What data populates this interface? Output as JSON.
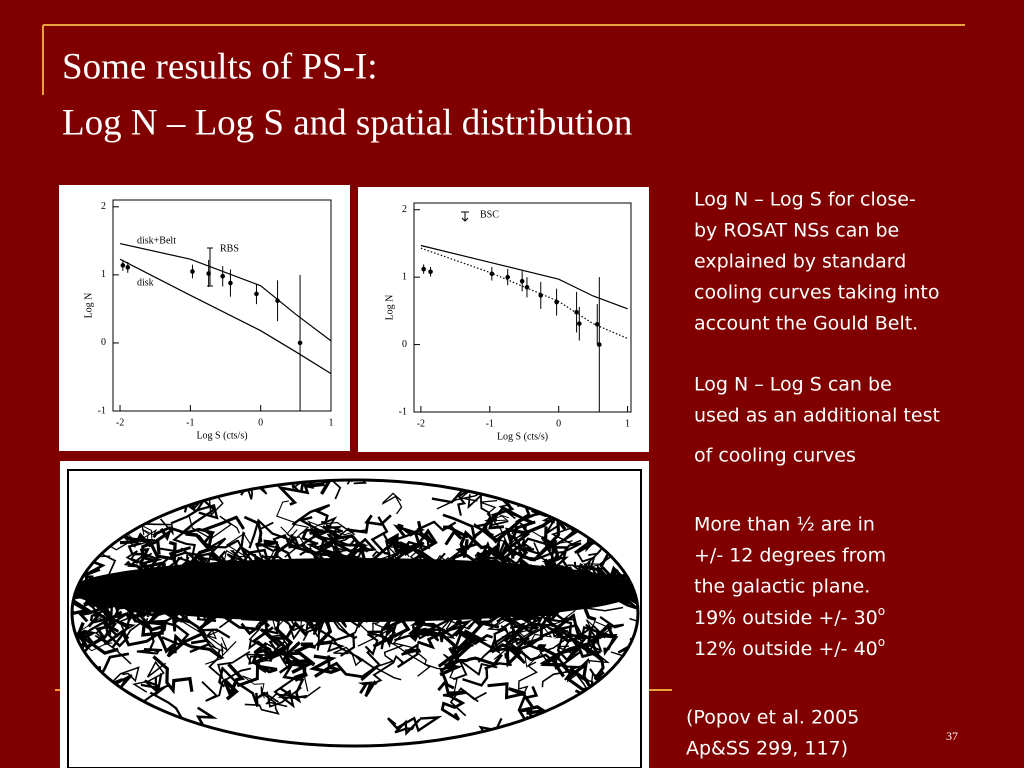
{
  "slide": {
    "title": [
      "Some results of  PS-I:",
      "Log N – Log S and spatial distribution"
    ],
    "paragraphs": [
      [
        "Log N – Log S for close-",
        "by ROSAT NSs can be",
        "explained by standard",
        "cooling curves taking into",
        "account the Gould Belt."
      ],
      [
        "Log N – Log S can be",
        "used as an additional test",
        "of cooling curves"
      ],
      [
        "More than ½  are in",
        "+/- 12 degrees from",
        "the galactic plane."
      ]
    ],
    "outside": [
      {
        "text": "19% outside +/- 30",
        "sup": "o"
      },
      {
        "text": "12% outside +/- 40",
        "sup": "o"
      }
    ],
    "citation": [
      "(Popov et al. 2005",
      " Ap&SS  299, 117)"
    ],
    "page_number": "37"
  },
  "chart_data": [
    {
      "type": "line",
      "xlabel": "Log S (cts/s)",
      "ylabel": "Log N",
      "xlim": [
        -2.1,
        1
      ],
      "ylim": [
        -1,
        2.1
      ],
      "xticks": [
        -2,
        -1,
        0,
        1
      ],
      "yticks": [
        -1,
        0,
        1,
        2
      ],
      "series": [
        {
          "name": "disk+Belt",
          "style": "solid",
          "x": [
            -2,
            -1,
            0,
            0.5,
            1
          ],
          "values": [
            1.46,
            1.23,
            0.84,
            0.42,
            0.03
          ]
        },
        {
          "name": "disk",
          "style": "solid",
          "x": [
            -2,
            -1,
            0,
            0.5,
            1
          ],
          "values": [
            1.23,
            0.7,
            0.18,
            -0.13,
            -0.45
          ]
        },
        {
          "name": "RBS",
          "style": "points",
          "x": [
            -1.96,
            -1.89,
            -0.97,
            -0.74,
            -0.54,
            -0.43,
            -0.06,
            0.24,
            0.56
          ],
          "values": [
            1.14,
            1.11,
            1.05,
            1.02,
            0.98,
            0.88,
            0.72,
            0.62,
            0.0
          ],
          "yerr": [
            0.08,
            0.08,
            0.1,
            0.2,
            0.15,
            0.2,
            0.15,
            0.3,
            1.0
          ]
        }
      ]
    },
    {
      "type": "line",
      "xlabel": "Log S (cts/s)",
      "ylabel": "Log N",
      "xlim": [
        -2.1,
        1.05
      ],
      "ylim": [
        -1,
        2.1
      ],
      "xticks": [
        -2,
        -1,
        0,
        1
      ],
      "yticks": [
        -1,
        0,
        1,
        2
      ],
      "series": [
        {
          "style": "solid",
          "x": [
            -2,
            -1,
            0,
            0.5,
            1
          ],
          "values": [
            1.47,
            1.22,
            0.97,
            0.72,
            0.53
          ]
        },
        {
          "style": "dotted",
          "x": [
            -2,
            -1,
            0,
            0.5,
            1
          ],
          "values": [
            1.43,
            1.07,
            0.64,
            0.31,
            0.09
          ]
        },
        {
          "name": "BSC",
          "style": "points",
          "x": [
            -1.96,
            -1.86,
            -0.97,
            -0.74,
            -0.53,
            -0.46,
            -0.26,
            -0.03,
            0.26,
            0.3,
            0.56,
            0.59
          ],
          "values": [
            1.12,
            1.08,
            1.05,
            1.0,
            0.94,
            0.85,
            0.73,
            0.63,
            0.48,
            0.31,
            0.3,
            0.0
          ],
          "yerr": [
            0.07,
            0.07,
            0.1,
            0.12,
            0.15,
            0.15,
            0.2,
            0.2,
            0.3,
            0.25,
            0.3,
            1.0
          ]
        }
      ]
    }
  ]
}
